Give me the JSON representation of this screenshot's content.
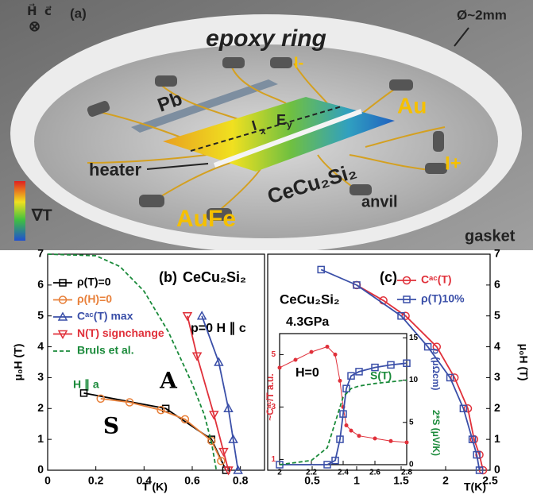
{
  "illustration": {
    "panel_label": "(a)",
    "field_h": "H⃗",
    "field_c": "c⃗",
    "field_symbol": "⊗",
    "ring": "epoxy ring",
    "diameter": "Ø~2mm",
    "pb": "Pb",
    "i_minus": "I-",
    "au": "Au",
    "i_plus": "I+",
    "heater": "heater",
    "sample": "CeCu₂Si₂",
    "anvil": "anvil",
    "aufe": "AuFe",
    "gasket": "gasket",
    "gradient": "∇T",
    "current": "I",
    "current_sub": "x",
    "field_e": "E",
    "field_e_sub": "y"
  },
  "chart_data": [
    {
      "type": "line",
      "x_label": "T (K)",
      "y_label": "μ₀H (T)",
      "y_axis_side": "left",
      "xlim": [
        0,
        0.9
      ],
      "ylim": [
        0,
        7
      ],
      "xticks": [
        0,
        0.2,
        0.4,
        0.6,
        0.8
      ],
      "yticks": [
        0,
        1,
        2,
        3,
        4,
        5,
        6,
        7
      ],
      "annotations": [
        "(b)",
        "CeCu₂Si₂",
        "p=0  H ∥ c",
        "A",
        "S",
        "H ∥ a"
      ],
      "series": [
        {
          "name": "ρ(T)=0",
          "color": "#000000",
          "marker": "square",
          "x": [
            0.15,
            0.49,
            0.68,
            0.74
          ],
          "values": [
            2.5,
            2.0,
            1.0,
            0
          ]
        },
        {
          "name": "ρ(H)=0",
          "color": "#e8803a",
          "marker": "circle",
          "x": [
            0.22,
            0.34,
            0.47,
            0.57,
            0.68,
            0.72
          ],
          "values": [
            2.32,
            2.2,
            1.95,
            1.65,
            0.95,
            0.3
          ]
        },
        {
          "name": "Cᵃᶜ(T) max",
          "color": "#3a4fa8",
          "marker": "triangle-up",
          "x": [
            0.64,
            0.71,
            0.75,
            0.77,
            0.79
          ],
          "values": [
            5.0,
            3.5,
            2.0,
            1.0,
            0
          ]
        },
        {
          "name": "N(T) signchange",
          "color": "#e0303a",
          "marker": "triangle-down",
          "x": [
            0.58,
            0.62,
            0.69,
            0.73,
            0.75
          ],
          "values": [
            5.0,
            3.7,
            1.8,
            0.6,
            0
          ]
        },
        {
          "name": "Bruls et al.",
          "color": "#1a8a3a",
          "marker": "none",
          "dashed": true,
          "x": [
            0,
            0.2,
            0.3,
            0.4,
            0.5,
            0.6,
            0.65,
            0.68,
            0.7
          ],
          "values": [
            7,
            6.95,
            6.6,
            5.8,
            4.5,
            2.8,
            1.8,
            0.9,
            0
          ]
        }
      ]
    },
    {
      "type": "line",
      "x_label": "T(K)",
      "y_label": "μ₀H (T)",
      "y_axis_side": "right",
      "xlim": [
        0,
        2.5
      ],
      "ylim": [
        0,
        7
      ],
      "xticks": [
        0.5,
        1,
        1.5,
        2,
        2.5
      ],
      "yticks": [
        0,
        1,
        2,
        3,
        4,
        5,
        6,
        7
      ],
      "annotations": [
        "(c)",
        "CeCu₂Si₂",
        "4.3GPa"
      ],
      "series": [
        {
          "name": "Cᵃᶜ(T)",
          "color": "#e0303a",
          "marker": "circle",
          "x": [
            1.0,
            1.3,
            1.55,
            1.9,
            2.1,
            2.25,
            2.32,
            2.38,
            2.42
          ],
          "values": [
            6.0,
            5.5,
            5.0,
            4.0,
            3.0,
            2.0,
            1.0,
            0.5,
            0
          ]
        },
        {
          "name": "ρ(T)10%",
          "color": "#3a4fa8",
          "marker": "square",
          "x": [
            0.6,
            1.0,
            1.5,
            1.8,
            2.05,
            2.2,
            2.3,
            2.35,
            2.38
          ],
          "values": [
            6.5,
            6.0,
            5.0,
            4.0,
            3.0,
            2.0,
            1.0,
            0.5,
            0
          ]
        }
      ]
    },
    {
      "type": "line",
      "y_label": "~Cᵃᶜ/T a.u.",
      "y2_label": "ρ (μΩcm)",
      "y_axis_side": "left",
      "xlim": [
        2.0,
        2.8
      ],
      "ylim": [
        0.8,
        5.8
      ],
      "y2lim": [
        0,
        15.5
      ],
      "xticks": [
        2,
        2.2,
        2.4,
        2.6,
        2.8
      ],
      "yticks": [
        1,
        3,
        5
      ],
      "y2ticks": [
        0,
        5,
        10,
        15
      ],
      "annotations": [
        "H=0",
        "S(T)",
        "2*S (μV/K)"
      ],
      "series": [
        {
          "color": "#e0303a",
          "marker": "dot",
          "x": [
            2.0,
            2.1,
            2.2,
            2.3,
            2.35,
            2.38,
            2.4,
            2.42,
            2.45,
            2.5,
            2.6,
            2.7,
            2.8
          ],
          "values": [
            4.5,
            4.8,
            5.1,
            5.3,
            5.0,
            4.0,
            3.0,
            2.3,
            2.1,
            1.9,
            1.8,
            1.7,
            1.65
          ]
        },
        {
          "color": "#3a4fa8",
          "marker": "square",
          "axis": "y2",
          "x": [
            2.0,
            2.3,
            2.35,
            2.38,
            2.4,
            2.42,
            2.45,
            2.5,
            2.6,
            2.7,
            2.8
          ],
          "values": [
            0,
            0,
            0.5,
            3,
            6,
            9,
            10.5,
            11,
            11.5,
            11.8,
            12
          ]
        },
        {
          "color": "#1a8a3a",
          "marker": "none",
          "dashed": true,
          "axis": "y2",
          "x": [
            2.0,
            2.2,
            2.3,
            2.35,
            2.4,
            2.45,
            2.5,
            2.6,
            2.8
          ],
          "values": [
            0,
            0.5,
            2,
            5,
            8,
            9,
            9.3,
            9.6,
            10
          ]
        }
      ]
    }
  ]
}
